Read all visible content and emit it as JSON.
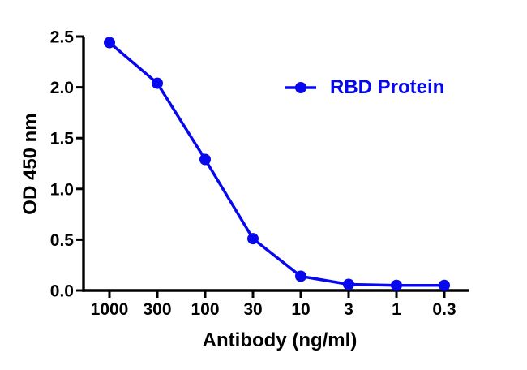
{
  "chart_data": {
    "type": "line",
    "title": "",
    "xlabel": "Antibody (ng/ml)",
    "ylabel": "OD 450 nm",
    "x_scale": "log-descending",
    "categories": [
      "1000",
      "300",
      "100",
      "30",
      "10",
      "3",
      "1",
      "0.3"
    ],
    "ytick_labels": [
      "0.0",
      "0.5",
      "1.0",
      "1.5",
      "2.0",
      "2.5"
    ],
    "ylim": [
      0,
      2.5
    ],
    "grid": false,
    "legend_position": "inside-upper-right",
    "series": [
      {
        "name": "RBD Protein",
        "color": "#0808ee",
        "marker": "filled-circle",
        "values": [
          2.44,
          2.04,
          1.29,
          0.51,
          0.14,
          0.06,
          0.05,
          0.05
        ]
      }
    ]
  },
  "colors": {
    "series": "#0808ee",
    "axis": "#000000",
    "background": "#ffffff"
  }
}
